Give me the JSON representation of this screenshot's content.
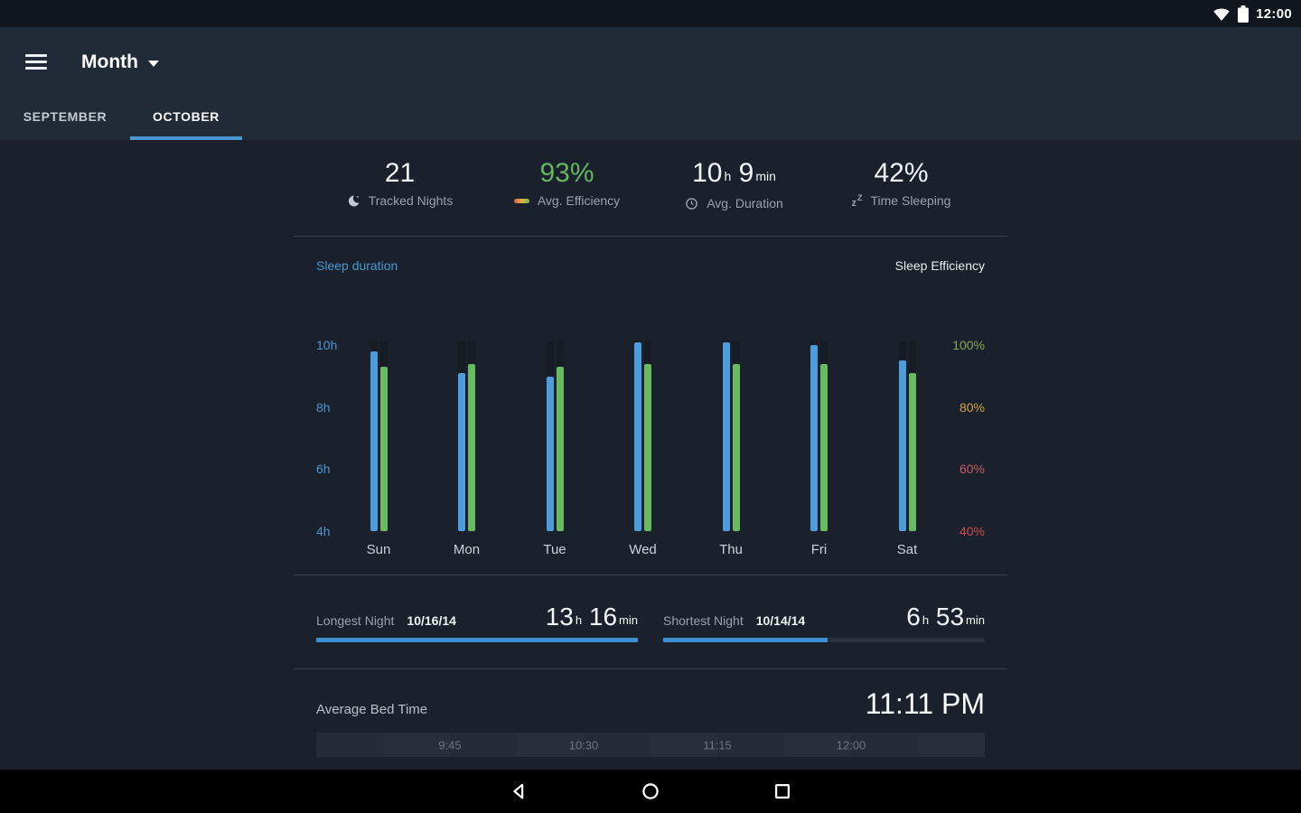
{
  "status_bar": {
    "time": "12:00",
    "icons": [
      "wifi-icon",
      "battery-icon"
    ]
  },
  "header": {
    "title": "Month",
    "tabs": [
      {
        "label": "SEPTEMBER",
        "active": false
      },
      {
        "label": "OCTOBER",
        "active": true
      }
    ]
  },
  "stats": {
    "tracked_nights": {
      "value": "21",
      "label": "Tracked Nights",
      "icon": "moon-icon"
    },
    "avg_efficiency": {
      "value": "93%",
      "label": "Avg. Efficiency",
      "icon": "efficiency-gradient-icon",
      "value_color": "#63b75e"
    },
    "avg_duration": {
      "hours": "10",
      "hours_unit": "h",
      "minutes": "9",
      "minutes_unit": "min",
      "label": "Avg. Duration",
      "icon": "clock-icon"
    },
    "time_sleeping": {
      "value": "42%",
      "label": "Time Sleeping",
      "icon": "zzz-icon"
    }
  },
  "chart": {
    "duration_label": "Sleep duration",
    "efficiency_label": "Sleep Efficiency"
  },
  "chart_data": {
    "type": "bar",
    "categories": [
      "Sun",
      "Mon",
      "Tue",
      "Wed",
      "Thu",
      "Fri",
      "Sat"
    ],
    "series": [
      {
        "name": "Sleep duration",
        "axis": "left",
        "unit": "hours",
        "color": "#4d9cdb",
        "values": [
          9.8,
          9.1,
          9.0,
          10.1,
          10.1,
          10.0,
          9.5
        ]
      },
      {
        "name": "Sleep Efficiency",
        "axis": "right",
        "unit": "percent",
        "color": "#68bc5f",
        "values": [
          93,
          94,
          93,
          94,
          94,
          94,
          91
        ]
      }
    ],
    "left_axis": {
      "ticks": [
        "10h",
        "8h",
        "6h",
        "4h"
      ],
      "tick_values": [
        10,
        8,
        6,
        4
      ],
      "range": [
        4,
        10.3
      ],
      "color": "#4e94cf"
    },
    "right_axis": {
      "ticks": [
        "100%",
        "80%",
        "60%",
        "40%"
      ],
      "tick_values": [
        100,
        80,
        60,
        40
      ],
      "range": [
        40,
        103
      ],
      "tick_colors": [
        "#85a653",
        "#d2a144",
        "#c25f63",
        "#c94f52"
      ]
    },
    "track_top_value_left": 10.15,
    "grid": false,
    "legend_position": "top"
  },
  "records": {
    "longest": {
      "label": "Longest Night",
      "date": "10/16/14",
      "hours": "13",
      "hours_unit": "h",
      "minutes": "16",
      "minutes_unit": "min",
      "fill_percent": 100
    },
    "shortest": {
      "label": "Shortest Night",
      "date": "10/14/14",
      "hours": "6",
      "hours_unit": "h",
      "minutes": "53",
      "minutes_unit": "min",
      "fill_percent": 51
    }
  },
  "bedtime": {
    "label": "Average Bed Time",
    "value": "11:11 PM",
    "ticks": [
      "9:45",
      "10:30",
      "11:15",
      "12:00"
    ]
  },
  "nav": {
    "icons": [
      "back-icon",
      "home-icon",
      "recents-icon"
    ]
  },
  "colors": {
    "accent_blue": "#4a97d2",
    "bar_blue": "#4d9cdb",
    "bar_green": "#68bc5f",
    "bar_track": "#161b24",
    "record_bar_blue": "#3f90d1",
    "record_bar_track": "#2a313d"
  }
}
